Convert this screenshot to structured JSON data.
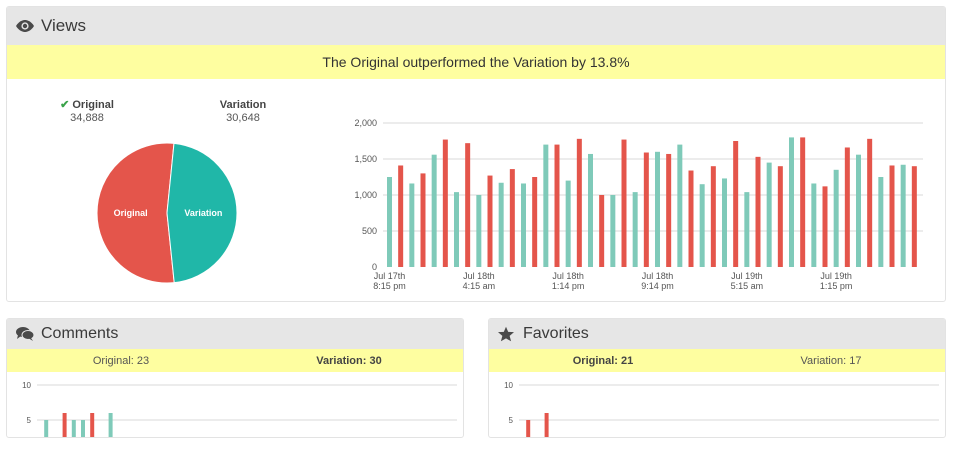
{
  "views": {
    "title": "Views",
    "banner": "The Original outperformed the Variation by 13.8%",
    "original": {
      "label": "Original",
      "value": "34,888"
    },
    "variation": {
      "label": "Variation",
      "value": "30,648"
    },
    "pie_labels": {
      "original": "Original",
      "variation": "Variation"
    }
  },
  "comments": {
    "title": "Comments",
    "original": "Original: 23",
    "variation": "Variation: 30",
    "y_ticks": [
      "10",
      "5"
    ]
  },
  "favorites": {
    "title": "Favorites",
    "original": "Original: 21",
    "variation": "Variation: 17",
    "y_ticks": [
      "10",
      "5"
    ]
  },
  "colors": {
    "original": "#e4554b",
    "variation": "#7fcab9",
    "pie_variation": "#20b7a8"
  },
  "icons": {
    "views": "eye-icon",
    "comments": "comments-icon",
    "favorites": "star-icon",
    "winner": "check-icon"
  },
  "chart_data": [
    {
      "type": "pie",
      "categories": [
        "Original",
        "Variation"
      ],
      "values": [
        34888,
        30648
      ]
    },
    {
      "type": "bar",
      "yticks": [
        "0",
        "500",
        "1,000",
        "1,500",
        "2,000"
      ],
      "ylim": [
        0,
        2000
      ],
      "xticks": [
        {
          "index": 0,
          "line1": "Jul 17th",
          "line2": "8:15 pm"
        },
        {
          "index": 8,
          "line1": "Jul 18th",
          "line2": "4:15 am"
        },
        {
          "index": 16,
          "line1": "Jul 18th",
          "line2": "1:14 pm"
        },
        {
          "index": 24,
          "line1": "Jul 18th",
          "line2": "9:14 pm"
        },
        {
          "index": 32,
          "line1": "Jul 19th",
          "line2": "5:15 am"
        },
        {
          "index": 40,
          "line1": "Jul 19th",
          "line2": "1:15 pm"
        }
      ],
      "series": [
        {
          "color": "#7fcab9",
          "values": [
            1250,
            1160,
            1560,
            1040,
            1000,
            1170,
            1160,
            1700,
            1200,
            1570,
            1000,
            1040,
            1600,
            1700,
            1150,
            1230,
            1040,
            1450,
            1800,
            1160,
            1350,
            1560,
            1250,
            1420
          ]
        },
        {
          "color": "#e4554b",
          "values": [
            1410,
            1300,
            1770,
            1720,
            1270,
            1360,
            1250,
            1700,
            1780,
            1000,
            1770,
            1590,
            1570,
            1340,
            1400,
            1750,
            1530,
            1400,
            1800,
            1120,
            1660,
            1780,
            1410,
            1400
          ]
        }
      ]
    },
    {
      "type": "bar",
      "yticks": [
        "10",
        "5"
      ],
      "ylim": [
        0,
        10
      ],
      "series": [
        {
          "color": "#7fcab9",
          "x": [
            1,
            4,
            5,
            8
          ],
          "values": [
            5,
            5,
            5,
            6
          ]
        },
        {
          "color": "#e4554b",
          "x": [
            3,
            6
          ],
          "values": [
            6,
            6
          ]
        }
      ]
    },
    {
      "type": "bar",
      "yticks": [
        "10",
        "5"
      ],
      "ylim": [
        0,
        10
      ],
      "series": [
        {
          "color": "#e4554b",
          "x": [
            1,
            3
          ],
          "values": [
            5,
            6
          ]
        }
      ]
    }
  ]
}
